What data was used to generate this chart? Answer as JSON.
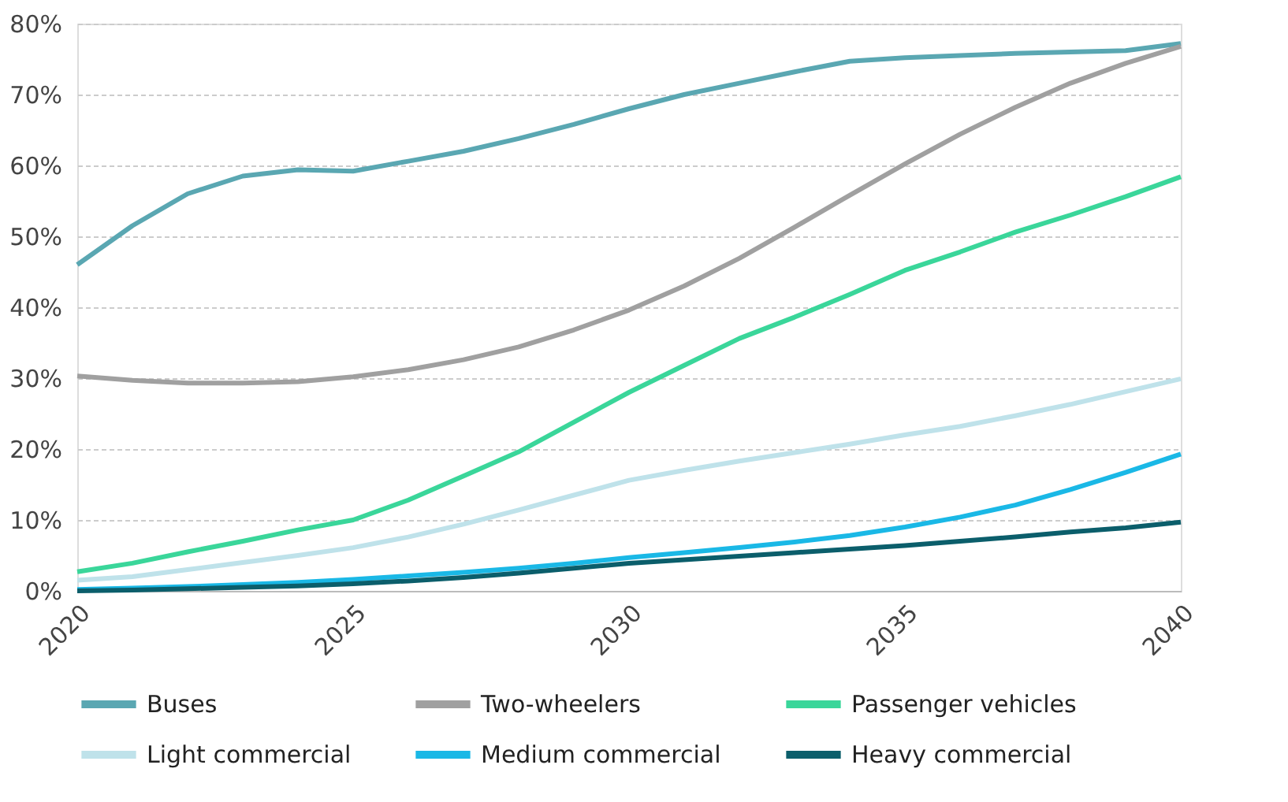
{
  "chart_data": {
    "type": "line",
    "x": [
      2020,
      2021,
      2022,
      2023,
      2024,
      2025,
      2026,
      2027,
      2028,
      2029,
      2030,
      2031,
      2032,
      2033,
      2034,
      2035,
      2036,
      2037,
      2038,
      2039,
      2040
    ],
    "series": [
      {
        "name": "Buses",
        "color": "#5aa7b2",
        "values": [
          46,
          51.5,
          56,
          58.5,
          59.4,
          59.2,
          60.6,
          62,
          63.8,
          65.8,
          68,
          70,
          71.6,
          73.2,
          74.7,
          75.2,
          75.5,
          75.8,
          76,
          76.2,
          77.2
        ]
      },
      {
        "name": "Two-wheelers",
        "color": "#a0a0a0",
        "values": [
          30.3,
          29.7,
          29.3,
          29.3,
          29.5,
          30.2,
          31.2,
          32.6,
          34.4,
          36.8,
          39.6,
          43,
          46.9,
          51.3,
          55.8,
          60.2,
          64.4,
          68.2,
          71.6,
          74.4,
          76.8
        ]
      },
      {
        "name": "Passenger vehicles",
        "color": "#3ad69a",
        "values": [
          2.7,
          3.9,
          5.5,
          7,
          8.6,
          10,
          12.8,
          16.2,
          19.6,
          23.8,
          28,
          31.8,
          35.6,
          38.6,
          41.8,
          45.2,
          47.8,
          50.6,
          53,
          55.6,
          58.4
        ]
      },
      {
        "name": "Light commercial",
        "color": "#bfe2ea",
        "values": [
          1.5,
          2,
          3,
          4,
          5,
          6.1,
          7.6,
          9.4,
          11.4,
          13.5,
          15.6,
          17,
          18.3,
          19.5,
          20.7,
          22,
          23.2,
          24.7,
          26.3,
          28.1,
          29.9
        ]
      },
      {
        "name": "Medium commercial",
        "color": "#1ab8e6",
        "values": [
          0.2,
          0.4,
          0.6,
          0.9,
          1.2,
          1.6,
          2.1,
          2.6,
          3.2,
          3.9,
          4.7,
          5.4,
          6.1,
          6.9,
          7.8,
          9,
          10.4,
          12.1,
          14.3,
          16.7,
          19.3
        ]
      },
      {
        "name": "Heavy  commercial",
        "color": "#0b5e6b",
        "values": [
          0,
          0.1,
          0.3,
          0.5,
          0.7,
          1,
          1.4,
          1.9,
          2.5,
          3.2,
          3.9,
          4.4,
          4.9,
          5.4,
          5.9,
          6.4,
          7,
          7.6,
          8.3,
          8.9,
          9.7
        ]
      }
    ],
    "xlim": [
      2020,
      2040
    ],
    "xticks": [
      2020,
      2025,
      2030,
      2035,
      2040
    ],
    "ylim": [
      0,
      80
    ],
    "yticks": [
      {
        "value": 0,
        "label": "0%"
      },
      {
        "value": 10,
        "label": "10%"
      },
      {
        "value": 20,
        "label": "20%"
      },
      {
        "value": 30,
        "label": "30%"
      },
      {
        "value": 40,
        "label": "40%"
      },
      {
        "value": 50,
        "label": "50%"
      },
      {
        "value": 60,
        "label": "60%"
      },
      {
        "value": 70,
        "label": "70%"
      },
      {
        "value": 80,
        "label": "80%"
      }
    ],
    "grid": "y",
    "legend": "bottom",
    "marker": "none",
    "line_style": "solid"
  }
}
